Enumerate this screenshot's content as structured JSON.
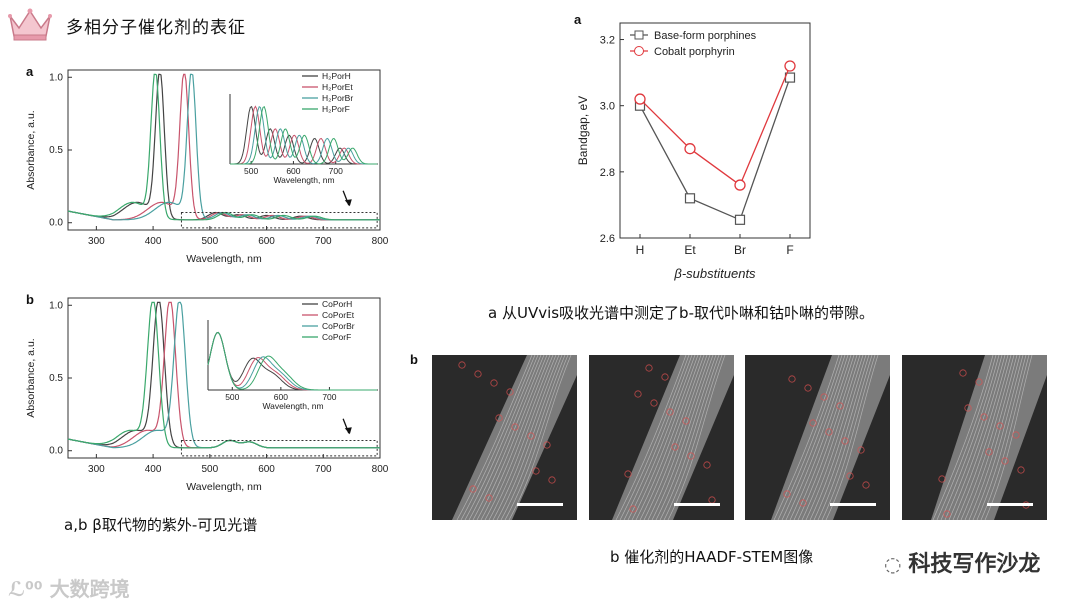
{
  "header": {
    "title": "多相分子催化剂的表征"
  },
  "panels": {
    "a_left": "a",
    "b_left": "b",
    "a_right": "a",
    "b_right": "b"
  },
  "captions": {
    "left": "a,b  β取代物的紫外-可见光谱",
    "right_top": "a 从UVvis吸收光谱中测定了b-取代卟啉和钴卟啉的带隙。",
    "right_bottom": "b 催化剂的HAADF-STEM图像"
  },
  "watermarks": {
    "left": "大数跨境",
    "right": "科技写作沙龙"
  },
  "chart_data": [
    {
      "id": "uvvis-a",
      "type": "line",
      "xlabel": "Wavelength, nm",
      "ylabel": "Absorbance, a.u.",
      "xlim": [
        250,
        800
      ],
      "ylim": [
        -0.05,
        1.05
      ],
      "xticks": [
        300,
        400,
        500,
        600,
        700,
        800
      ],
      "yticks": [
        0.0,
        0.5,
        1.0
      ],
      "series": [
        {
          "name": "H₂PorH",
          "color": "#444444",
          "peak": 412
        },
        {
          "name": "H₂PorEt",
          "color": "#c8546c",
          "peak": 455
        },
        {
          "name": "H₂PorBr",
          "color": "#4aa0a0",
          "peak": 468
        },
        {
          "name": "H₂PorF",
          "color": "#3aa86c",
          "peak": 404
        }
      ],
      "inset": {
        "xlabel": "Wavelength, nm",
        "xticks": [
          500,
          600,
          700
        ],
        "xlim": [
          450,
          800
        ]
      }
    },
    {
      "id": "uvvis-b",
      "type": "line",
      "xlabel": "Wavelength, nm",
      "ylabel": "Absorbance, a.u.",
      "xlim": [
        250,
        800
      ],
      "ylim": [
        -0.05,
        1.05
      ],
      "xticks": [
        300,
        400,
        500,
        600,
        700,
        800
      ],
      "yticks": [
        0.0,
        0.5,
        1.0
      ],
      "series": [
        {
          "name": "CoPorH",
          "color": "#444444",
          "peak": 410
        },
        {
          "name": "CoPorEt",
          "color": "#c8546c",
          "peak": 430
        },
        {
          "name": "CoPorBr",
          "color": "#4aa0a0",
          "peak": 447
        },
        {
          "name": "CoPorF",
          "color": "#3aa86c",
          "peak": 400
        }
      ],
      "inset": {
        "xlabel": "Wavelength, nm",
        "xticks": [
          500,
          600,
          700
        ],
        "xlim": [
          450,
          800
        ]
      }
    },
    {
      "id": "bandgap",
      "type": "line",
      "xlabel": "β-substituents",
      "ylabel": "Bandgap, eV",
      "categories": [
        "H",
        "Et",
        "Br",
        "F"
      ],
      "ylim": [
        2.6,
        3.25
      ],
      "yticks": [
        2.6,
        2.8,
        3.0,
        3.2
      ],
      "series": [
        {
          "name": "Base-form porphines",
          "color": "#555555",
          "marker": "square",
          "values": [
            3.0,
            2.72,
            2.655,
            3.085
          ]
        },
        {
          "name": "Cobalt porphyrin",
          "color": "#e0393e",
          "marker": "circle",
          "values": [
            3.02,
            2.87,
            2.76,
            3.12
          ]
        }
      ]
    }
  ]
}
